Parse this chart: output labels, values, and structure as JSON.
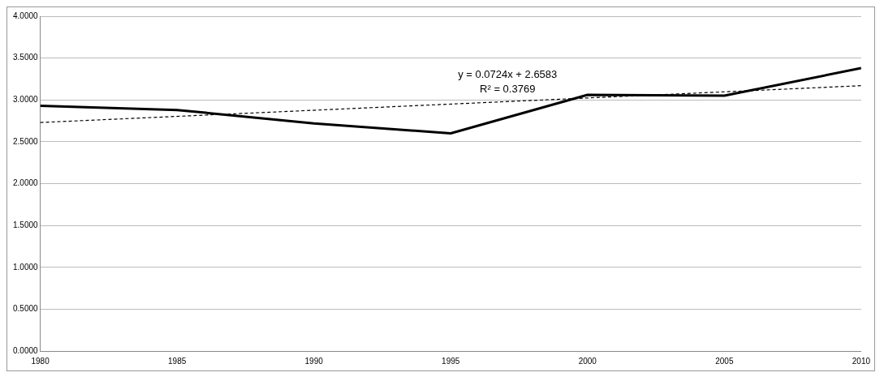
{
  "chart_data": {
    "type": "line",
    "xlim": [
      1980,
      2010
    ],
    "xticks": [
      1980,
      1985,
      1990,
      1995,
      2000,
      2005,
      2010
    ],
    "ylim": [
      0,
      4
    ],
    "yticks": [
      {
        "value": 0,
        "label": "0.0000"
      },
      {
        "value": 0.5,
        "label": "0.5000"
      },
      {
        "value": 1,
        "label": "1.0000"
      },
      {
        "value": 1.5,
        "label": "1.5000"
      },
      {
        "value": 2,
        "label": "2.0000"
      },
      {
        "value": 2.5,
        "label": "2.5000"
      },
      {
        "value": 3,
        "label": "3.0000"
      },
      {
        "value": 3.5,
        "label": "3.5000"
      },
      {
        "value": 4,
        "label": "4.0000"
      }
    ],
    "grid": "y",
    "legend": false,
    "marker": "none",
    "series": [
      {
        "color": "#000000",
        "x": [
          1980,
          1985,
          1990,
          1995,
          2000,
          2005,
          2010
        ],
        "values": [
          2.93,
          2.88,
          2.72,
          2.6,
          3.06,
          3.05,
          3.38
        ],
        "line_style": "solid"
      },
      {
        "color": "#000000",
        "x": [
          1980,
          2010
        ],
        "values": [
          2.73,
          3.17
        ],
        "line_style": "dashed"
      }
    ],
    "annotations": [
      "y = 0.0724x + 2.6583",
      "R² = 0.3769"
    ]
  }
}
